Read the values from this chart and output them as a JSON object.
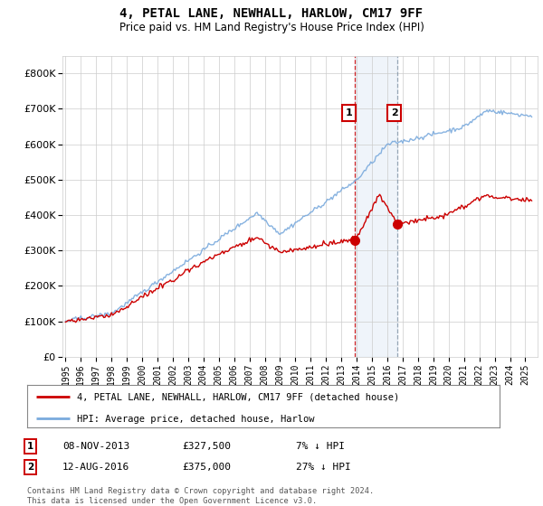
{
  "title": "4, PETAL LANE, NEWHALL, HARLOW, CM17 9FF",
  "subtitle": "Price paid vs. HM Land Registry's House Price Index (HPI)",
  "hpi_label": "HPI: Average price, detached house, Harlow",
  "property_label": "4, PETAL LANE, NEWHALL, HARLOW, CM17 9FF (detached house)",
  "hpi_color": "#7aaadd",
  "property_color": "#cc0000",
  "transaction1_date": "08-NOV-2013",
  "transaction1_price": 327500,
  "transaction1_hpi_text": "7% ↓ HPI",
  "transaction2_date": "12-AUG-2016",
  "transaction2_price": 375000,
  "transaction2_hpi_text": "27% ↓ HPI",
  "transaction1_x": 2013.85,
  "transaction2_x": 2016.62,
  "shade_xmin": 2013.85,
  "shade_xmax": 2016.62,
  "ylim_min": 0,
  "ylim_max": 850000,
  "xlim_min": 1994.8,
  "xlim_max": 2025.8,
  "copyright_text": "Contains HM Land Registry data © Crown copyright and database right 2024.\nThis data is licensed under the Open Government Licence v3.0.",
  "background_color": "#ffffff",
  "grid_color": "#cccccc"
}
